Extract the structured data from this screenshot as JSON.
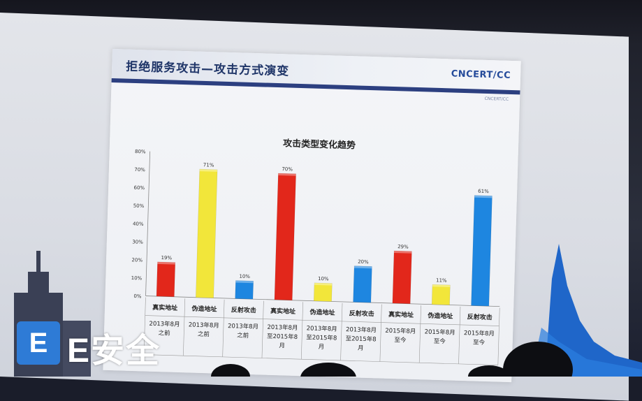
{
  "slide": {
    "title": "拒绝服务攻击—攻击方式演变",
    "logo": "CNCERT/CC",
    "logo_sub": "CNCERT/CC"
  },
  "watermark": {
    "letter": "E",
    "text": "E安全"
  },
  "colors": {
    "red": "#e2271b",
    "yellow": "#f2e63a",
    "blue": "#1e86e0",
    "header_bar": "#2c3f80",
    "title": "#1f3568"
  },
  "chart_data": {
    "type": "bar",
    "title": "攻击类型变化趋势",
    "ylim": [
      0,
      80
    ],
    "yticks": [
      "0%",
      "10%",
      "20%",
      "30%",
      "40%",
      "50%",
      "60%",
      "70%",
      "80%"
    ],
    "categories": [
      {
        "type": "真实地址",
        "period": "2013年8月之前",
        "value": 19,
        "label": "19%",
        "color": "red"
      },
      {
        "type": "伪造地址",
        "period": "2013年8月之前",
        "value": 71,
        "label": "71%",
        "color": "yellow"
      },
      {
        "type": "反射攻击",
        "period": "2013年8月之前",
        "value": 10,
        "label": "10%",
        "color": "blue"
      },
      {
        "type": "真实地址",
        "period": "2013年8月至2015年8月",
        "value": 70,
        "label": "70%",
        "color": "red"
      },
      {
        "type": "伪造地址",
        "period": "2013年8月至2015年8月",
        "value": 10,
        "label": "10%",
        "color": "yellow"
      },
      {
        "type": "反射攻击",
        "period": "2013年8月至2015年8月",
        "value": 20,
        "label": "20%",
        "color": "blue"
      },
      {
        "type": "真实地址",
        "period": "2015年8月至今",
        "value": 29,
        "label": "29%",
        "color": "red"
      },
      {
        "type": "伪造地址",
        "period": "2015年8月至今",
        "value": 11,
        "label": "11%",
        "color": "yellow"
      },
      {
        "type": "反射攻击",
        "period": "2015年8月至今",
        "value": 61,
        "label": "61%",
        "color": "blue"
      }
    ],
    "period_lines": [
      [
        "2013年8月",
        "之前"
      ],
      [
        "2013年8月",
        "之前"
      ],
      [
        "2013年8月",
        "之前"
      ],
      [
        "2013年8月",
        "至2015年8",
        "月"
      ],
      [
        "2013年8月",
        "至2015年8",
        "月"
      ],
      [
        "2013年8月",
        "至2015年8",
        "月"
      ],
      [
        "2015年8月",
        "至今"
      ],
      [
        "2015年8月",
        "至今"
      ],
      [
        "2015年8月",
        "至今"
      ]
    ]
  }
}
